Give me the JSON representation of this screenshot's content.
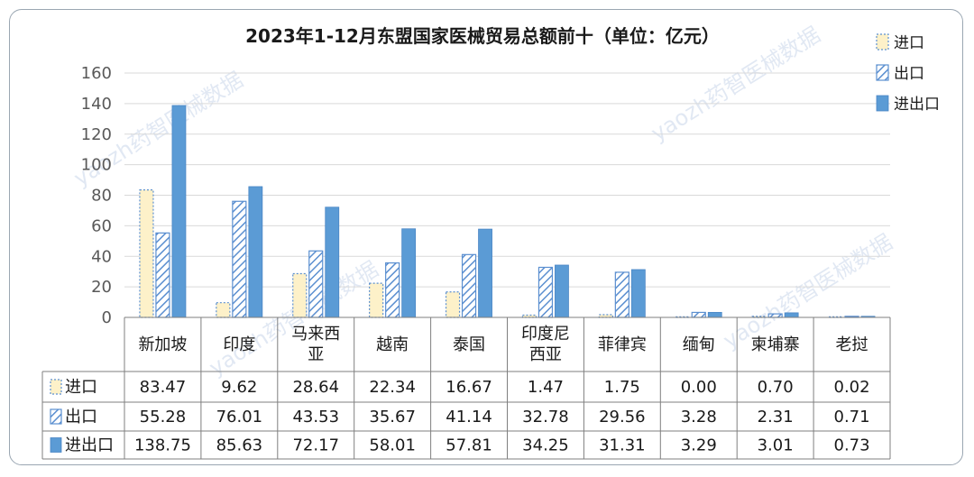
{
  "chart_data": {
    "type": "bar",
    "title": "2023年1-12月东盟国家医械贸易总额前十（单位：亿元）",
    "categories": [
      [
        "新加坡"
      ],
      [
        "印度"
      ],
      [
        "马来西",
        "亚"
      ],
      [
        "越南"
      ],
      [
        "泰国"
      ],
      [
        "印度尼",
        "西亚"
      ],
      [
        "菲律宾"
      ],
      [
        "缅甸"
      ],
      [
        "柬埔寨"
      ],
      [
        "老挝"
      ]
    ],
    "series": [
      {
        "name": "进口",
        "style": "dotted",
        "fill": "#fdf1c9",
        "stroke": "#5b8fd0",
        "values": [
          83.47,
          9.62,
          28.64,
          22.34,
          16.67,
          1.47,
          1.75,
          0.0,
          0.7,
          0.02
        ],
        "labels": [
          "83.47",
          "9.62",
          "28.64",
          "22.34",
          "16.67",
          "1.47",
          "1.75",
          "0.00",
          "0.70",
          "0.02"
        ]
      },
      {
        "name": "出口",
        "style": "hatched",
        "fill": "#ffffff",
        "stroke": "#5b8fd0",
        "values": [
          55.28,
          76.01,
          43.53,
          35.67,
          41.14,
          32.78,
          29.56,
          3.28,
          2.31,
          0.71
        ],
        "labels": [
          "55.28",
          "76.01",
          "43.53",
          "35.67",
          "41.14",
          "32.78",
          "29.56",
          "3.28",
          "2.31",
          "0.71"
        ]
      },
      {
        "name": "进出口",
        "style": "solid",
        "fill": "#5b9bd5",
        "stroke": "#4a86c5",
        "values": [
          138.75,
          85.63,
          72.17,
          58.01,
          57.81,
          34.25,
          31.31,
          3.29,
          3.01,
          0.73
        ],
        "labels": [
          "138.75",
          "85.63",
          "72.17",
          "58.01",
          "57.81",
          "34.25",
          "31.31",
          "3.29",
          "3.01",
          "0.73"
        ]
      }
    ],
    "ylim": [
      0,
      160
    ],
    "yticks": [
      "0",
      "20",
      "40",
      "60",
      "80",
      "100",
      "120",
      "140",
      "160"
    ],
    "grid": true,
    "legend_position": "top-right",
    "data_table": true
  },
  "watermark": "yaozh药智医械数据"
}
